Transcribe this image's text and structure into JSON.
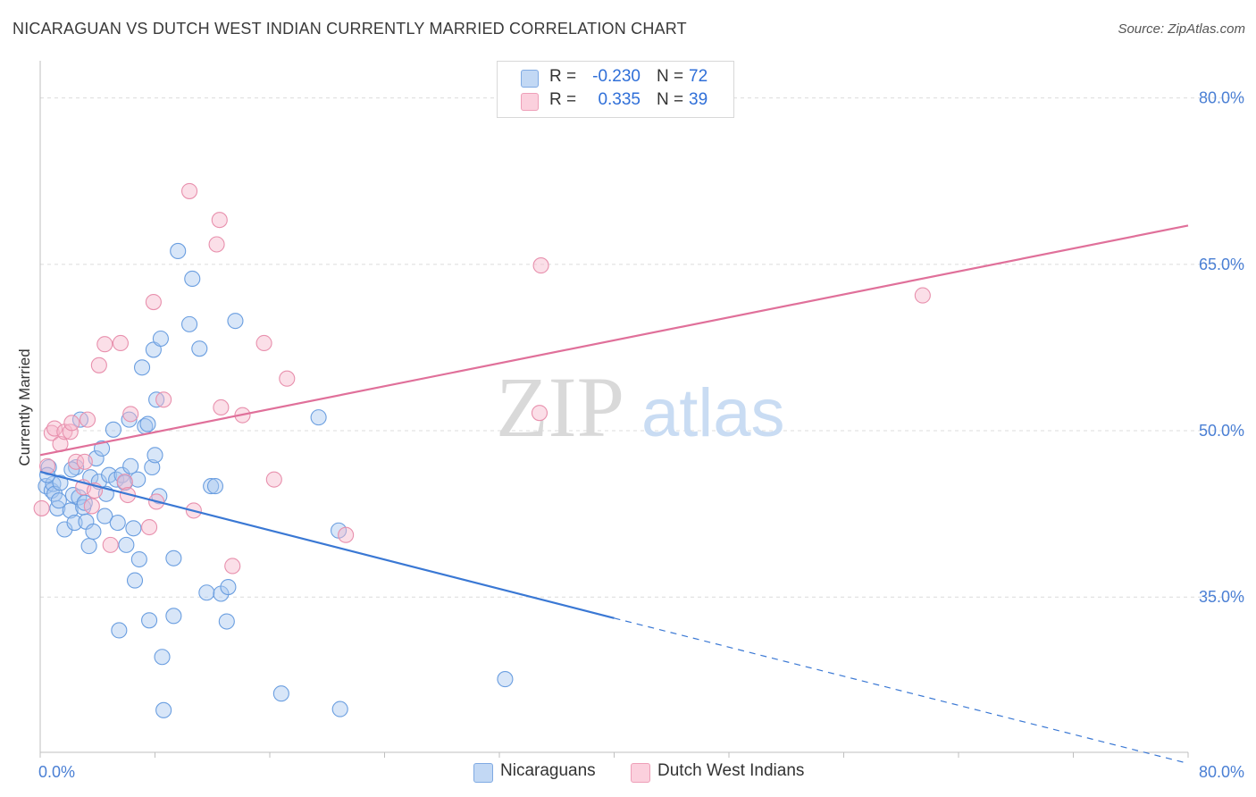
{
  "title": "NICARAGUAN VS DUTCH WEST INDIAN CURRENTLY MARRIED CORRELATION CHART",
  "source": "Source: ZipAtlas.com",
  "watermark": {
    "zip": "ZIP",
    "atlas": "atlas"
  },
  "legend_top": {
    "rows": [
      {
        "r_label": "R =",
        "r_value": "-0.230",
        "n_label": "N =",
        "n_value": "72",
        "color": "#a8c8f0"
      },
      {
        "r_label": "R =",
        "r_value": "0.335",
        "n_label": "N =",
        "n_value": "39",
        "color": "#f6b8cb"
      }
    ]
  },
  "legend_bottom": [
    {
      "label": "Nicaraguans",
      "color": "#a8c8f0"
    },
    {
      "label": "Dutch West Indians",
      "color": "#f6b8cb"
    }
  ],
  "chart_data": {
    "type": "scatter",
    "title": "NICARAGUAN VS DUTCH WEST INDIAN CURRENTLY MARRIED CORRELATION CHART",
    "xlabel": "",
    "ylabel": "Currently Married",
    "xlim": [
      0,
      80
    ],
    "ylim": [
      21,
      84
    ],
    "x_tick_labels": [
      {
        "value": 0,
        "label": "0.0%"
      },
      {
        "value": 80,
        "label": "80.0%"
      }
    ],
    "y_tick_labels": [
      {
        "value": 35,
        "label": "35.0%"
      },
      {
        "value": 50,
        "label": "50.0%"
      },
      {
        "value": 65,
        "label": "65.0%"
      },
      {
        "value": 80,
        "label": "80.0%"
      }
    ],
    "grid": "horizontal dashed",
    "legend_position": "top-center",
    "series": [
      {
        "name": "Nicaraguans",
        "color": "#6a9ee0",
        "fill": "#a8c8f0",
        "trend": {
          "x": [
            0,
            40
          ],
          "y": [
            46.3,
            33.1
          ],
          "dashed_to": [
            80,
            20.0
          ]
        },
        "points": [
          [
            0.4,
            45.0
          ],
          [
            0.6,
            46.7
          ],
          [
            0.8,
            44.6
          ],
          [
            0.9,
            45.2
          ],
          [
            1.0,
            44.3
          ],
          [
            1.2,
            43.0
          ],
          [
            1.3,
            43.7
          ],
          [
            1.4,
            45.3
          ],
          [
            1.7,
            41.1
          ],
          [
            2.1,
            42.8
          ],
          [
            2.3,
            44.2
          ],
          [
            2.4,
            41.7
          ],
          [
            2.5,
            46.7
          ],
          [
            2.7,
            44.0
          ],
          [
            2.8,
            51.0
          ],
          [
            3.0,
            43.1
          ],
          [
            3.1,
            43.5
          ],
          [
            3.2,
            41.8
          ],
          [
            3.4,
            39.6
          ],
          [
            3.5,
            45.8
          ],
          [
            3.7,
            40.9
          ],
          [
            3.9,
            47.5
          ],
          [
            4.1,
            45.4
          ],
          [
            4.3,
            48.4
          ],
          [
            4.5,
            42.3
          ],
          [
            4.6,
            44.3
          ],
          [
            4.8,
            46.0
          ],
          [
            5.1,
            50.1
          ],
          [
            5.3,
            45.6
          ],
          [
            5.4,
            41.7
          ],
          [
            5.5,
            32.0
          ],
          [
            5.7,
            46.0
          ],
          [
            5.9,
            45.3
          ],
          [
            6.0,
            39.7
          ],
          [
            6.2,
            51.0
          ],
          [
            6.3,
            46.8
          ],
          [
            6.5,
            41.2
          ],
          [
            6.6,
            36.5
          ],
          [
            6.8,
            45.6
          ],
          [
            6.9,
            38.4
          ],
          [
            7.1,
            55.7
          ],
          [
            7.3,
            50.4
          ],
          [
            7.5,
            50.6
          ],
          [
            7.6,
            32.9
          ],
          [
            7.8,
            46.7
          ],
          [
            7.9,
            57.3
          ],
          [
            8.0,
            47.8
          ],
          [
            8.1,
            52.8
          ],
          [
            8.3,
            44.1
          ],
          [
            8.4,
            58.3
          ],
          [
            8.5,
            29.6
          ],
          [
            8.6,
            24.8
          ],
          [
            9.3,
            38.5
          ],
          [
            9.3,
            33.3
          ],
          [
            9.6,
            66.2
          ],
          [
            10.4,
            59.6
          ],
          [
            10.6,
            63.7
          ],
          [
            11.1,
            57.4
          ],
          [
            11.6,
            35.4
          ],
          [
            11.9,
            45.0
          ],
          [
            12.2,
            45.0
          ],
          [
            12.6,
            35.3
          ],
          [
            13.0,
            32.8
          ],
          [
            13.1,
            35.9
          ],
          [
            13.6,
            59.9
          ],
          [
            16.8,
            26.3
          ],
          [
            19.4,
            51.2
          ],
          [
            20.8,
            41.0
          ],
          [
            20.9,
            24.9
          ],
          [
            32.4,
            27.6
          ],
          [
            0.5,
            46.0
          ],
          [
            2.2,
            46.5
          ]
        ]
      },
      {
        "name": "Dutch West Indians",
        "color": "#e890ad",
        "fill": "#f6b8cb",
        "trend": {
          "x": [
            0,
            80
          ],
          "y": [
            47.8,
            68.5
          ]
        },
        "points": [
          [
            0.1,
            43.0
          ],
          [
            0.5,
            46.8
          ],
          [
            0.8,
            49.8
          ],
          [
            1.0,
            50.2
          ],
          [
            1.4,
            48.8
          ],
          [
            1.7,
            49.9
          ],
          [
            2.1,
            49.9
          ],
          [
            2.2,
            50.7
          ],
          [
            2.5,
            47.2
          ],
          [
            3.0,
            44.9
          ],
          [
            3.1,
            47.2
          ],
          [
            3.3,
            51.0
          ],
          [
            3.6,
            43.2
          ],
          [
            3.8,
            44.6
          ],
          [
            4.1,
            55.9
          ],
          [
            4.5,
            57.8
          ],
          [
            4.9,
            39.7
          ],
          [
            5.6,
            57.9
          ],
          [
            5.9,
            45.4
          ],
          [
            6.1,
            44.2
          ],
          [
            6.3,
            51.5
          ],
          [
            7.6,
            41.3
          ],
          [
            7.9,
            61.6
          ],
          [
            8.1,
            43.6
          ],
          [
            8.6,
            52.8
          ],
          [
            10.4,
            71.6
          ],
          [
            10.7,
            42.8
          ],
          [
            12.3,
            66.8
          ],
          [
            12.5,
            69.0
          ],
          [
            12.6,
            52.1
          ],
          [
            13.4,
            37.8
          ],
          [
            14.1,
            51.4
          ],
          [
            15.6,
            57.9
          ],
          [
            16.3,
            45.6
          ],
          [
            17.2,
            54.7
          ],
          [
            21.3,
            40.6
          ],
          [
            34.8,
            51.6
          ],
          [
            34.9,
            64.9
          ],
          [
            61.5,
            62.2
          ]
        ]
      }
    ]
  }
}
